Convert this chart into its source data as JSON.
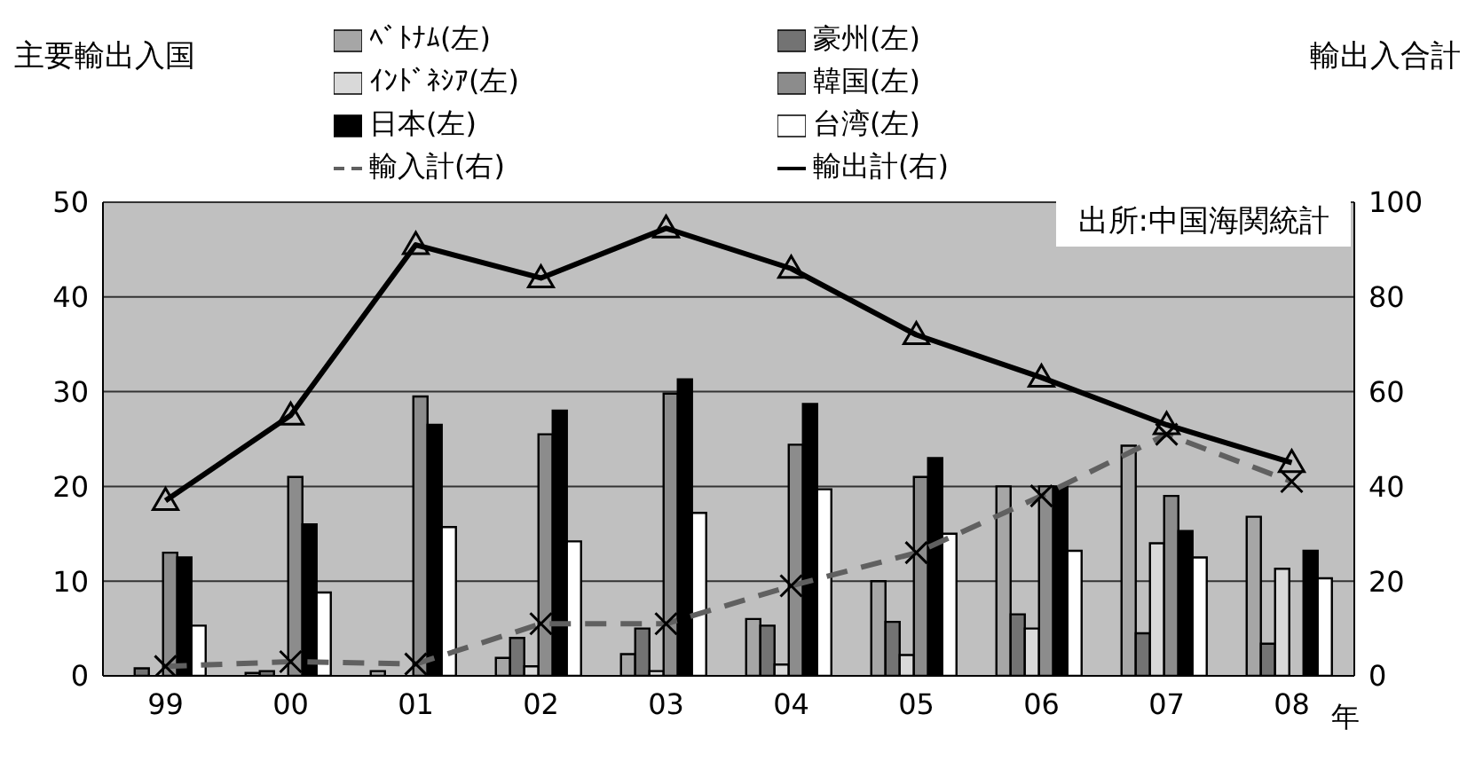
{
  "chart_data": {
    "type": "bar",
    "ylabel": "主要輸出入国",
    "y2label": "輸出入合計",
    "xlabel": "年",
    "categories": [
      "99",
      "00",
      "01",
      "02",
      "03",
      "04",
      "05",
      "06",
      "07",
      "08"
    ],
    "series": [
      {
        "name": "ﾍﾞﾄﾅﾑ(左)",
        "color": "#a6a6a6",
        "values": [
          0,
          0.3,
          0.5,
          1.9,
          2.3,
          6,
          10,
          20,
          24.3,
          16.8
        ]
      },
      {
        "name": "豪州(左)",
        "color": "#737373",
        "values": [
          0.8,
          0.5,
          0,
          4,
          5,
          5.3,
          5.7,
          6.5,
          4.5,
          3.4
        ]
      },
      {
        "name": "ｲﾝﾄﾞﾈｼｱ(左)",
        "color": "#d9d9d9",
        "values": [
          0,
          0,
          0,
          1,
          0.5,
          1.2,
          2.2,
          5,
          14,
          11.3
        ]
      },
      {
        "name": "韓国(左)",
        "color": "#8c8c8c",
        "values": [
          13,
          21,
          29.5,
          25.5,
          29.8,
          24.4,
          21,
          20,
          19,
          null
        ]
      },
      {
        "name": "日本(左)",
        "color": "#000000",
        "values": [
          12.5,
          16,
          26.5,
          28,
          31.3,
          28.7,
          23,
          20,
          15.3,
          13.2
        ]
      },
      {
        "name": "台湾(左)",
        "color": "#ffffff",
        "values": [
          5.3,
          8.8,
          15.7,
          14.2,
          17.2,
          19.7,
          15,
          13.2,
          12.5,
          10.3
        ]
      },
      {
        "name": "輸入計(右)",
        "type": "line",
        "axis": "y2",
        "color": "#606060",
        "line_style": "dashed",
        "marker": "cross",
        "values": [
          2,
          3,
          2.5,
          11,
          11,
          19,
          26,
          38,
          51,
          41
        ]
      },
      {
        "name": "輸出計(右)",
        "type": "line",
        "axis": "y2",
        "color": "#000000",
        "line_style": "solid",
        "marker": "triangle",
        "values": [
          37,
          55,
          91,
          84,
          94.5,
          86,
          72,
          63,
          53,
          45
        ]
      }
    ],
    "ylim": [
      0,
      50
    ],
    "yticks": [
      0,
      10,
      20,
      30,
      40,
      50
    ],
    "y2lim": [
      0,
      100
    ],
    "y2ticks": [
      0,
      20,
      40,
      60,
      80,
      100
    ],
    "grid": "y",
    "legend": "top",
    "annotations": [
      "出所:中国海関統計"
    ]
  }
}
